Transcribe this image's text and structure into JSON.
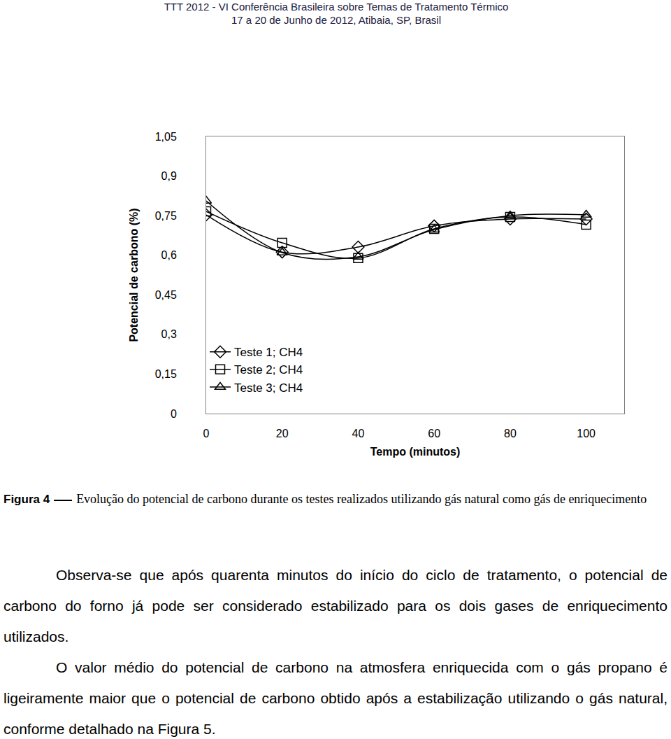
{
  "header": [
    "TTT 2012 - VI Conferência Brasileira sobre Temas de Tratamento Térmico",
    "17 a 20 de Junho de 2012, Atibaia, SP, Brasil"
  ],
  "chart_data": {
    "type": "line",
    "x_label": "Tempo (minutos)",
    "y_label": "Potencial de carbono (%)",
    "x": [
      0,
      20,
      40,
      60,
      80,
      100
    ],
    "series": [
      {
        "name": "Teste 1; CH4",
        "color": "#000000",
        "marker": "diamond",
        "line_style": "smooth",
        "values": [
          0.753,
          0.612,
          0.631,
          0.711,
          0.737,
          0.737
        ]
      },
      {
        "name": "Teste 2; CH4",
        "color": "#000000",
        "marker": "square",
        "line_style": "smooth",
        "values": [
          0.766,
          0.647,
          0.589,
          0.7,
          0.745,
          0.716
        ]
      },
      {
        "name": "Teste 3; CH4",
        "color": "#000000",
        "marker": "triangle",
        "line_style": "smooth",
        "values": [
          0.806,
          0.61,
          0.594,
          0.697,
          0.75,
          0.753
        ]
      }
    ],
    "xlim": [
      0,
      110
    ],
    "xticks": [
      0,
      20,
      40,
      60,
      80,
      100
    ],
    "ylim": [
      0,
      1.05
    ],
    "yticks": [
      0,
      {
        "value": 0.15,
        "label": "0,15"
      },
      {
        "value": 0.3,
        "label": "0,3"
      },
      {
        "value": 0.45,
        "label": "0,45"
      },
      {
        "value": 0.6,
        "label": "0,6"
      },
      {
        "value": 0.75,
        "label": "0,75"
      },
      {
        "value": 0.9,
        "label": "0,9"
      },
      {
        "value": 1.05,
        "label": "1,05"
      }
    ],
    "grid": false,
    "legend": "lower left"
  },
  "caption": {
    "label": "Figura 4",
    "text": "Evolução do potencial de carbono durante os testes realizados utilizando gás natural como gás de enriquecimento"
  },
  "paragraphs": [
    "Observa-se que após quarenta minutos do início do ciclo de tratamento, o potencial de carbono do forno já pode ser considerado estabilizado para os dois gases de enriquecimento utilizados.",
    "O valor médio do potencial de carbono na atmosfera enriquecida com o gás propano é ligeiramente maior que o potencial de carbono obtido após a estabilização utilizando o gás natural, conforme detalhado na Figura 5."
  ]
}
